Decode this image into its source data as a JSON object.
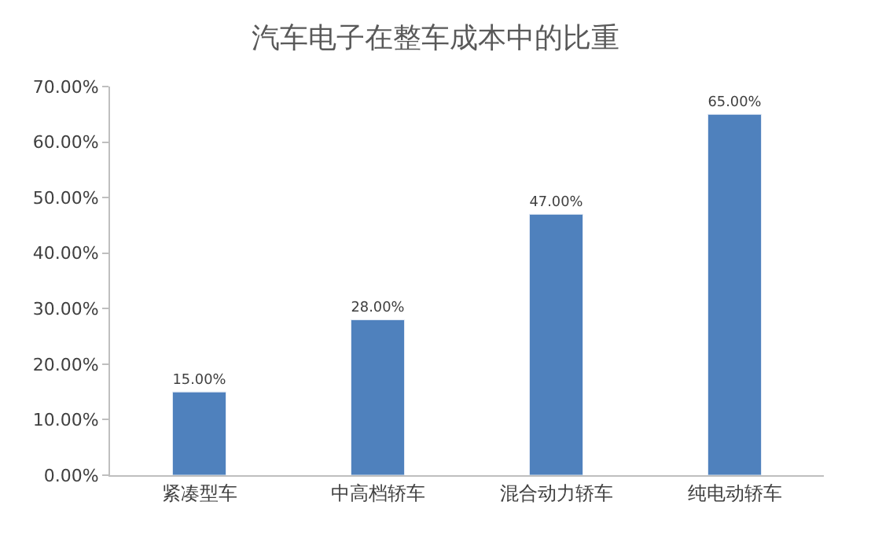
{
  "chart_data": {
    "type": "bar",
    "title": "汽车电子在整车成本中的比重",
    "categories": [
      "紧凑型车",
      "中高档轿车",
      "混合动力轿车",
      "纯电动轿车"
    ],
    "values": [
      15,
      28,
      47,
      65
    ],
    "value_labels": [
      "15.00%",
      "28.00%",
      "47.00%",
      "65.00%"
    ],
    "color": "#4f81bd",
    "ylim": [
      0,
      70
    ],
    "yticks": [
      {
        "value": 0,
        "label": "0.00%"
      },
      {
        "value": 10,
        "label": "10.00%"
      },
      {
        "value": 20,
        "label": "20.00%"
      },
      {
        "value": 30,
        "label": "30.00%"
      },
      {
        "value": 40,
        "label": "40.00%"
      },
      {
        "value": 50,
        "label": "50.00%"
      },
      {
        "value": 60,
        "label": "60.00%"
      },
      {
        "value": 70,
        "label": "70.00%"
      }
    ],
    "tick_labels": "xy"
  }
}
